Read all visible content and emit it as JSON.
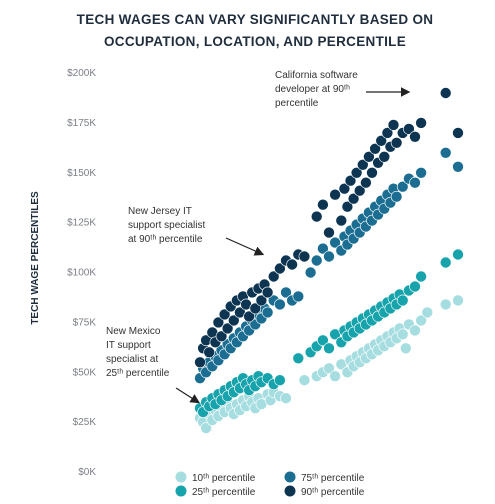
{
  "chart_data": {
    "type": "scatter",
    "title": "TECH WAGES CAN VARY SIGNIFICANTLY BASED ON OCCUPATION, LOCATION, AND PERCENTILE",
    "title_lines": [
      "TECH WAGES CAN VARY SIGNIFICANTLY BASED ON",
      "OCCUPATION, LOCATION, AND PERCENTILE"
    ],
    "ylabel": "TECH WAGE PERCENTILES",
    "xlabel": "",
    "ylim": [
      0,
      200000
    ],
    "y_ticks": [
      0,
      25000,
      50000,
      75000,
      100000,
      125000,
      150000,
      175000,
      200000
    ],
    "y_tick_labels": [
      "$0K",
      "$25K",
      "$50K",
      "$75K",
      "$100K",
      "$125K",
      "$150K",
      "$175K",
      "$200K"
    ],
    "grid": false,
    "legend_position": "bottom",
    "annotations": [
      {
        "lines": [
          "California software",
          "developer at 90ᵗʰ",
          "percentile"
        ]
      },
      {
        "lines": [
          "New Jersey IT",
          "support specialist",
          "at 90ᵗʰ percentile"
        ]
      },
      {
        "lines": [
          "New Mexico",
          "IT support",
          "specialist at",
          "25ᵗʰ percentile"
        ]
      }
    ],
    "series": [
      {
        "name": "10ᵗʰ percentile",
        "color": "#a6dde0",
        "values": [
          [
            1,
            27000
          ],
          [
            1.5,
            25000
          ],
          [
            2,
            22000
          ],
          [
            2.5,
            29000
          ],
          [
            3,
            26000
          ],
          [
            3.5,
            31000
          ],
          [
            4,
            28000
          ],
          [
            4.5,
            33000
          ],
          [
            5,
            30000
          ],
          [
            5.5,
            35000
          ],
          [
            6,
            32000
          ],
          [
            6.5,
            29000
          ],
          [
            7,
            34000
          ],
          [
            7.5,
            31000
          ],
          [
            8,
            36000
          ],
          [
            8.5,
            33000
          ],
          [
            9,
            38000
          ],
          [
            9.5,
            35000
          ],
          [
            10,
            32000
          ],
          [
            10.5,
            37000
          ],
          [
            11,
            34000
          ],
          [
            12,
            39000
          ],
          [
            12.5,
            36000
          ],
          [
            13,
            40000
          ],
          [
            14,
            38000
          ],
          [
            15,
            37000
          ],
          [
            18,
            46000
          ],
          [
            20,
            48000
          ],
          [
            21,
            50000
          ],
          [
            22,
            52000
          ],
          [
            23,
            48000
          ],
          [
            24,
            54000
          ],
          [
            25,
            50000
          ],
          [
            25.5,
            56000
          ],
          [
            26,
            53000
          ],
          [
            26.5,
            58000
          ],
          [
            27,
            55000
          ],
          [
            27.5,
            60000
          ],
          [
            28,
            57000
          ],
          [
            28.5,
            62000
          ],
          [
            29,
            59000
          ],
          [
            29.5,
            64000
          ],
          [
            30,
            61000
          ],
          [
            30.5,
            66000
          ],
          [
            31,
            63000
          ],
          [
            31.5,
            68000
          ],
          [
            32,
            65000
          ],
          [
            32.5,
            70000
          ],
          [
            33,
            67000
          ],
          [
            33.5,
            72000
          ],
          [
            34,
            69000
          ],
          [
            34.5,
            62000
          ],
          [
            35,
            74000
          ],
          [
            36,
            71000
          ],
          [
            37,
            76000
          ],
          [
            38,
            80000
          ],
          [
            41,
            84000
          ],
          [
            43,
            86000
          ]
        ]
      },
      {
        "name": "25ᵗʰ percentile",
        "color": "#16a3ab",
        "values": [
          [
            1,
            32000
          ],
          [
            1.5,
            30000
          ],
          [
            2,
            35000
          ],
          [
            2.5,
            33000
          ],
          [
            3,
            37000
          ],
          [
            3.5,
            34000
          ],
          [
            4,
            39000
          ],
          [
            4.5,
            36000
          ],
          [
            5,
            41000
          ],
          [
            5.5,
            38000
          ],
          [
            6,
            43000
          ],
          [
            6.5,
            40000
          ],
          [
            7,
            45000
          ],
          [
            7.5,
            42000
          ],
          [
            8,
            47000
          ],
          [
            8.5,
            44000
          ],
          [
            9,
            41000
          ],
          [
            9.5,
            46000
          ],
          [
            10,
            43000
          ],
          [
            10.5,
            48000
          ],
          [
            11,
            45000
          ],
          [
            12,
            47000
          ],
          [
            13,
            44000
          ],
          [
            14,
            46000
          ],
          [
            17,
            57000
          ],
          [
            19,
            60000
          ],
          [
            20,
            63000
          ],
          [
            21,
            66000
          ],
          [
            22,
            62000
          ],
          [
            23,
            69000
          ],
          [
            24,
            65000
          ],
          [
            24.5,
            71000
          ],
          [
            25,
            68000
          ],
          [
            25.5,
            73000
          ],
          [
            26,
            70000
          ],
          [
            26.5,
            75000
          ],
          [
            27,
            72000
          ],
          [
            27.5,
            77000
          ],
          [
            28,
            74000
          ],
          [
            28.5,
            79000
          ],
          [
            29,
            76000
          ],
          [
            29.5,
            81000
          ],
          [
            30,
            78000
          ],
          [
            30.5,
            83000
          ],
          [
            31,
            80000
          ],
          [
            31.5,
            85000
          ],
          [
            32,
            82000
          ],
          [
            32.5,
            87000
          ],
          [
            33,
            84000
          ],
          [
            33.5,
            89000
          ],
          [
            34,
            86000
          ],
          [
            35,
            91000
          ],
          [
            36,
            93000
          ],
          [
            37,
            98000
          ],
          [
            41,
            105000
          ],
          [
            43,
            109000
          ]
        ]
      },
      {
        "name": "75ᵗʰ percentile",
        "color": "#1b6e91",
        "values": [
          [
            1,
            47000
          ],
          [
            1.5,
            52000
          ],
          [
            2,
            50000
          ],
          [
            2.5,
            55000
          ],
          [
            3,
            53000
          ],
          [
            3.5,
            58000
          ],
          [
            4,
            56000
          ],
          [
            4.5,
            61000
          ],
          [
            5,
            59000
          ],
          [
            5.5,
            64000
          ],
          [
            6,
            62000
          ],
          [
            6.5,
            67000
          ],
          [
            7,
            65000
          ],
          [
            7.5,
            70000
          ],
          [
            8,
            68000
          ],
          [
            8.5,
            73000
          ],
          [
            9,
            71000
          ],
          [
            9.5,
            76000
          ],
          [
            10,
            74000
          ],
          [
            10.5,
            79000
          ],
          [
            11,
            77000
          ],
          [
            11.5,
            82000
          ],
          [
            12,
            80000
          ],
          [
            13,
            86000
          ],
          [
            14,
            84000
          ],
          [
            15,
            90000
          ],
          [
            16,
            86000
          ],
          [
            17,
            88000
          ],
          [
            19,
            100000
          ],
          [
            20,
            106000
          ],
          [
            21,
            112000
          ],
          [
            22,
            108000
          ],
          [
            23,
            115000
          ],
          [
            24,
            111000
          ],
          [
            24.5,
            118000
          ],
          [
            25,
            114000
          ],
          [
            25.5,
            121000
          ],
          [
            26,
            117000
          ],
          [
            26.5,
            124000
          ],
          [
            27,
            120000
          ],
          [
            27.5,
            127000
          ],
          [
            28,
            123000
          ],
          [
            28.5,
            130000
          ],
          [
            29,
            126000
          ],
          [
            29.5,
            133000
          ],
          [
            30,
            129000
          ],
          [
            30.5,
            136000
          ],
          [
            31,
            132000
          ],
          [
            31.5,
            139000
          ],
          [
            32,
            135000
          ],
          [
            32.5,
            142000
          ],
          [
            33,
            138000
          ],
          [
            34,
            143000
          ],
          [
            35,
            147000
          ],
          [
            36,
            145000
          ],
          [
            37,
            150000
          ],
          [
            41,
            160000
          ],
          [
            43,
            153000
          ]
        ]
      },
      {
        "name": "90ᵗʰ percentile",
        "color": "#0d3552",
        "values": [
          [
            1,
            55000
          ],
          [
            1.5,
            62000
          ],
          [
            2,
            66000
          ],
          [
            2.5,
            60000
          ],
          [
            3,
            70000
          ],
          [
            3.5,
            65000
          ],
          [
            4,
            75000
          ],
          [
            4.5,
            68000
          ],
          [
            5,
            79000
          ],
          [
            5.5,
            72000
          ],
          [
            6,
            83000
          ],
          [
            6.5,
            76000
          ],
          [
            7,
            86000
          ],
          [
            7.5,
            80000
          ],
          [
            8,
            88000
          ],
          [
            8.5,
            84000
          ],
          [
            9,
            78000
          ],
          [
            9.5,
            90000
          ],
          [
            10,
            82000
          ],
          [
            10.5,
            92000
          ],
          [
            11,
            86000
          ],
          [
            11.5,
            94000
          ],
          [
            12,
            90000
          ],
          [
            13,
            98000
          ],
          [
            14,
            102000
          ],
          [
            15,
            106000
          ],
          [
            16,
            104000
          ],
          [
            17,
            109000
          ],
          [
            18,
            108000
          ],
          [
            20,
            128000
          ],
          [
            21,
            134000
          ],
          [
            22,
            120000
          ],
          [
            23,
            139000
          ],
          [
            24,
            126000
          ],
          [
            24.5,
            142000
          ],
          [
            25,
            133000
          ],
          [
            25.5,
            146000
          ],
          [
            26,
            137000
          ],
          [
            26.5,
            150000
          ],
          [
            27,
            141000
          ],
          [
            27.5,
            154000
          ],
          [
            28,
            145000
          ],
          [
            28.5,
            158000
          ],
          [
            29,
            150000
          ],
          [
            29.5,
            162000
          ],
          [
            30,
            155000
          ],
          [
            30.5,
            166000
          ],
          [
            31,
            158000
          ],
          [
            31.5,
            170000
          ],
          [
            32,
            163000
          ],
          [
            32.5,
            174000
          ],
          [
            33,
            165000
          ],
          [
            34,
            170000
          ],
          [
            35,
            172000
          ],
          [
            36,
            168000
          ],
          [
            37,
            175000
          ],
          [
            41,
            190000
          ],
          [
            43,
            170000
          ]
        ]
      }
    ]
  }
}
